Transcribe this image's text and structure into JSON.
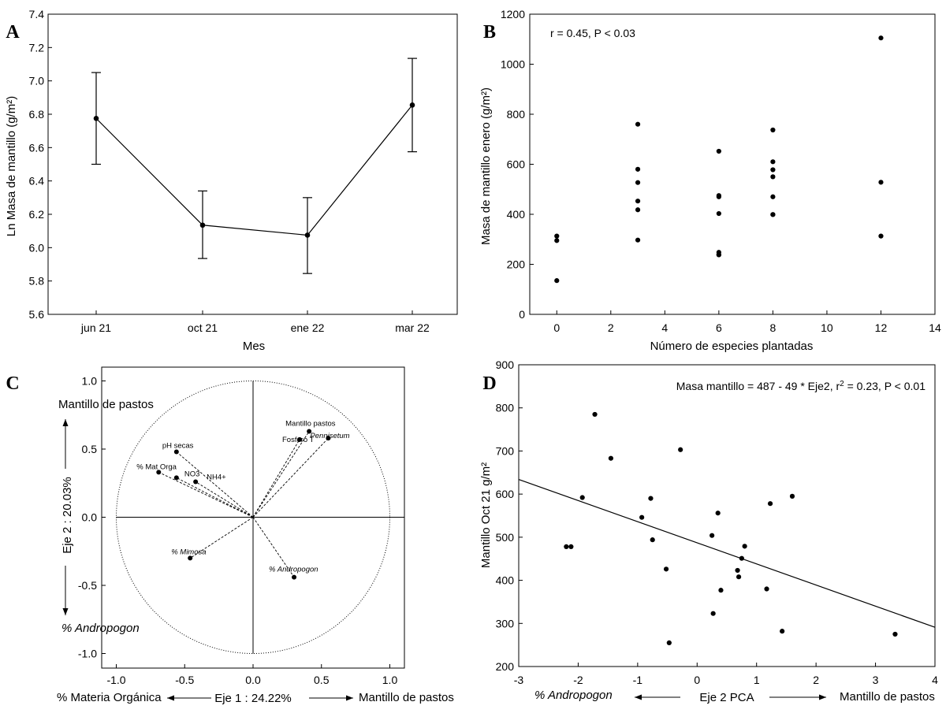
{
  "chart_data": [
    {
      "panel": "A",
      "type": "line",
      "xlabel": "Mes",
      "ylabel": "Ln Masa de mantillo (g/m²)",
      "categories": [
        "jun 21",
        "oct 21",
        "ene 22",
        "mar 22"
      ],
      "values": [
        6.775,
        6.135,
        6.075,
        6.855
      ],
      "error_low": [
        6.5,
        5.935,
        5.845,
        6.575
      ],
      "error_high": [
        7.05,
        6.34,
        6.3,
        7.135
      ],
      "ylim": [
        5.6,
        7.4
      ],
      "yticks": [
        5.6,
        5.8,
        6.0,
        6.2,
        6.4,
        6.6,
        6.8,
        7.0,
        7.2,
        7.4
      ]
    },
    {
      "panel": "B",
      "type": "scatter",
      "annotation": "r = 0.45, P < 0.03",
      "xlabel": "Número de especies plantadas",
      "ylabel": "Masa de mantillo enero (g/m²)",
      "xlim": [
        -1,
        14
      ],
      "ylim": [
        0,
        1200
      ],
      "xticks": [
        0,
        2,
        4,
        6,
        8,
        10,
        12,
        14
      ],
      "yticks": [
        0,
        200,
        400,
        600,
        800,
        1000,
        1200
      ],
      "x": [
        0,
        0,
        0,
        3,
        3,
        3,
        3,
        3,
        3,
        6,
        6,
        6,
        6,
        6,
        6,
        6,
        8,
        8,
        8,
        8,
        8,
        8,
        8,
        12,
        12,
        12
      ],
      "y": [
        313,
        295,
        135,
        760,
        580,
        527,
        453,
        418,
        297,
        652,
        475,
        470,
        403,
        248,
        238,
        238,
        737,
        610,
        578,
        550,
        470,
        399,
        399,
        1105,
        528,
        313
      ]
    },
    {
      "panel": "C",
      "type": "scatter",
      "subtype": "pca-correlation-circle",
      "xlabel": "Eje 1 : 24.22%",
      "ylabel": "Eje 2 : 20.03%",
      "x_left_label": "% Materia Orgánica",
      "x_right_label": "Mantillo de pastos",
      "y_top_label": "Mantillo de pastos",
      "y_bottom_label": "% Andropogon",
      "xlim": [
        -1.1,
        1.1
      ],
      "ylim": [
        -1.1,
        1.1
      ],
      "xticks": [
        "-1.0",
        "-0.5",
        "0.0",
        "0.5",
        "1.0"
      ],
      "yticks": [
        "-1.0",
        "-0.5",
        "0.0",
        "0.5",
        "1.0"
      ],
      "vectors": [
        {
          "label": "pH secas",
          "italic": false,
          "x": -0.56,
          "y": 0.48
        },
        {
          "label": "% Mat Orga",
          "italic": false,
          "x": -0.69,
          "y": 0.33
        },
        {
          "label": "NO3",
          "italic": false,
          "x": -0.56,
          "y": 0.29
        },
        {
          "label": "NH4+",
          "italic": false,
          "x": -0.42,
          "y": 0.26
        },
        {
          "label": "% Mimosa",
          "italic": true,
          "x": -0.46,
          "y": -0.3
        },
        {
          "label": "Mantillo pastos",
          "italic": false,
          "x": 0.41,
          "y": 0.63
        },
        {
          "label": "Fosforo T",
          "italic": false,
          "x": 0.34,
          "y": 0.57
        },
        {
          "label": "Pennisetum",
          "italic": true,
          "x": 0.55,
          "y": 0.58
        },
        {
          "label": "% Andropogon",
          "italic": true,
          "x": 0.3,
          "y": -0.44
        }
      ]
    },
    {
      "panel": "D",
      "type": "scatter",
      "annotation_prefix": "Masa mantillo = 487 - 49  * Eje2, r",
      "annotation_sup": "2",
      "annotation_suffix": " = 0.23, P < 0.01",
      "xlabel": "Eje 2 PCA",
      "x_left_label": "% Andropogon",
      "x_right_label": "Mantillo de pastos",
      "ylabel": "Mantillo Oct 21 g/m²",
      "xlim": [
        -3,
        4
      ],
      "ylim": [
        200,
        900
      ],
      "xticks": [
        -3,
        -2,
        -1,
        0,
        1,
        2,
        3,
        4
      ],
      "yticks": [
        200,
        300,
        400,
        500,
        600,
        700,
        800,
        900
      ],
      "fit": {
        "intercept": 487,
        "slope": -49
      },
      "x": [
        -2.2,
        -2.12,
        -1.93,
        -1.72,
        -1.45,
        -0.93,
        -0.78,
        -0.75,
        -0.52,
        -0.47,
        -0.28,
        0.25,
        0.27,
        0.35,
        0.4,
        0.68,
        0.7,
        0.75,
        0.8,
        1.17,
        1.23,
        1.43,
        1.6,
        3.33
      ],
      "y": [
        478,
        478,
        592,
        785,
        683,
        546,
        590,
        494,
        426,
        255,
        703,
        504,
        323,
        556,
        377,
        423,
        408,
        451,
        479,
        380,
        578,
        282,
        595,
        275
      ]
    }
  ],
  "panels": {
    "A": {
      "letter": "A"
    },
    "B": {
      "letter": "B"
    },
    "C": {
      "letter": "C"
    },
    "D": {
      "letter": "D"
    }
  }
}
